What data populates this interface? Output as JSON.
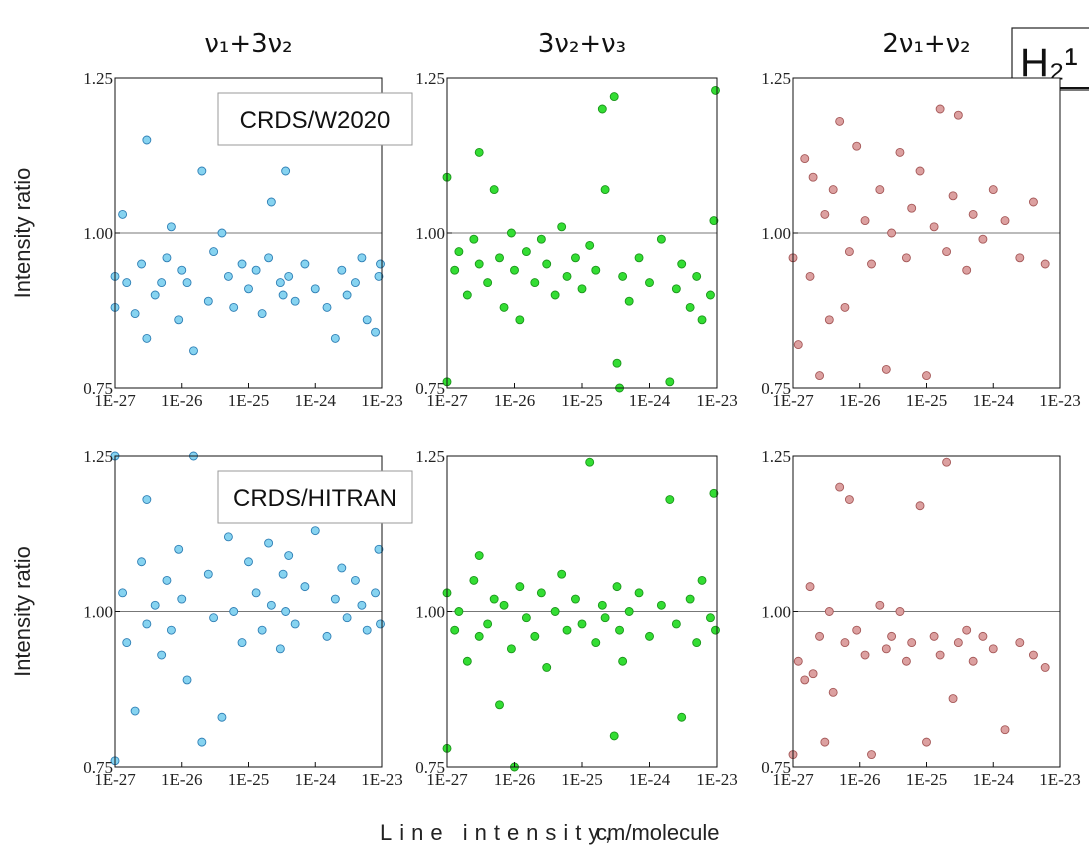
{
  "figure": {
    "label": "H₂¹",
    "xlabel": "Line intensity,",
    "xlabel_units": "cm/molecule"
  },
  "chart_data": [
    {
      "type": "scatter",
      "title": "ν₁+3ν₂",
      "ylabel": "Intensity ratio",
      "annotation": "CRDS/W2020",
      "xscale": "log",
      "xlim": [
        1e-27,
        1e-23
      ],
      "xticks": [
        {
          "value": 1e-27,
          "label": "1E-27"
        },
        {
          "value": 1e-26,
          "label": "1E-26"
        },
        {
          "value": 1e-25,
          "label": "1E-25"
        },
        {
          "value": 1e-24,
          "label": "1E-24"
        },
        {
          "value": 1e-23,
          "label": "1E-23"
        }
      ],
      "ylim": [
        0.75,
        1.25
      ],
      "yticks": [
        0.75,
        {
          "value": 1,
          "label": "1.00"
        },
        1.25
      ],
      "hline": 1,
      "series": [
        {
          "color": "#86d3f0",
          "edge": "#2f7fb5",
          "x": [
            1e-27,
            1e-27,
            1.3e-27,
            1.5e-27,
            2e-27,
            2.5e-27,
            3e-27,
            3e-27,
            4e-27,
            5e-27,
            6e-27,
            7e-27,
            9e-27,
            1e-26,
            1.2e-26,
            1.5e-26,
            2e-26,
            2.5e-26,
            3e-26,
            4e-26,
            5e-26,
            6e-26,
            8e-26,
            1e-25,
            1.3e-25,
            1.6e-25,
            2e-25,
            2.2e-25,
            3e-25,
            3.3e-25,
            3.6e-25,
            4e-25,
            5e-25,
            7e-25,
            1e-24,
            1.5e-24,
            2e-24,
            2.5e-24,
            3e-24,
            4e-24,
            5e-24,
            6e-24,
            8e-24,
            9e-24,
            9.5e-24
          ],
          "values": [
            0.93,
            0.88,
            1.03,
            0.92,
            0.87,
            0.95,
            1.15,
            0.83,
            0.9,
            0.92,
            0.96,
            1.01,
            0.86,
            0.94,
            0.92,
            0.81,
            1.1,
            0.89,
            0.97,
            1.0,
            0.93,
            0.88,
            0.95,
            0.91,
            0.94,
            0.87,
            0.96,
            1.05,
            0.92,
            0.9,
            1.1,
            0.93,
            0.89,
            0.95,
            0.91,
            0.88,
            0.83,
            0.94,
            0.9,
            0.92,
            0.96,
            0.86,
            0.84,
            0.93,
            0.95
          ]
        }
      ]
    },
    {
      "type": "scatter",
      "title": "3ν₂+ν₃",
      "xscale": "log",
      "xlim": [
        1e-27,
        1e-23
      ],
      "xticks": [
        {
          "value": 1e-27,
          "label": "1E-27"
        },
        {
          "value": 1e-26,
          "label": "1E-26"
        },
        {
          "value": 1e-25,
          "label": "1E-25"
        },
        {
          "value": 1e-24,
          "label": "1E-24"
        },
        {
          "value": 1e-23,
          "label": "1E-23"
        }
      ],
      "ylim": [
        0.75,
        1.25
      ],
      "yticks": [
        0.75,
        {
          "value": 1,
          "label": "1.00"
        },
        1.25
      ],
      "hline": 1,
      "series": [
        {
          "color": "#33dd33",
          "edge": "#1b951b",
          "x": [
            1e-27,
            1e-27,
            1.3e-27,
            1.5e-27,
            2e-27,
            2.5e-27,
            3e-27,
            3e-27,
            4e-27,
            5e-27,
            6e-27,
            7e-27,
            9e-27,
            1e-26,
            1.2e-26,
            1.5e-26,
            2e-26,
            2.5e-26,
            3e-26,
            4e-26,
            5e-26,
            6e-26,
            8e-26,
            1e-25,
            1.3e-25,
            1.6e-25,
            2e-25,
            2.2e-25,
            3e-25,
            3.3e-25,
            3.6e-25,
            4e-25,
            5e-25,
            7e-25,
            1e-24,
            1.5e-24,
            2e-24,
            2.5e-24,
            3e-24,
            4e-24,
            5e-24,
            6e-24,
            8e-24,
            9e-24,
            9.5e-24
          ],
          "values": [
            1.09,
            0.76,
            0.94,
            0.97,
            0.9,
            0.99,
            1.13,
            0.95,
            0.92,
            1.07,
            0.96,
            0.88,
            1.0,
            0.94,
            0.86,
            0.97,
            0.92,
            0.99,
            0.95,
            0.9,
            1.01,
            0.93,
            0.96,
            0.91,
            0.98,
            0.94,
            1.2,
            1.07,
            1.22,
            0.79,
            0.75,
            0.93,
            0.89,
            0.96,
            0.92,
            0.99,
            0.76,
            0.91,
            0.95,
            0.88,
            0.93,
            0.86,
            0.9,
            1.02,
            1.23
          ]
        }
      ]
    },
    {
      "type": "scatter",
      "title": "2ν₁+ν₂",
      "xscale": "log",
      "xlim": [
        1e-27,
        1e-23
      ],
      "xticks": [
        {
          "value": 1e-27,
          "label": "1E-27"
        },
        {
          "value": 1e-26,
          "label": "1E-26"
        },
        {
          "value": 1e-25,
          "label": "1E-25"
        },
        {
          "value": 1e-24,
          "label": "1E-24"
        },
        {
          "value": 1e-23,
          "label": "1E-23"
        }
      ],
      "ylim": [
        0.75,
        1.25
      ],
      "yticks": [
        0.75,
        {
          "value": 1,
          "label": "1.00"
        },
        1.25
      ],
      "hline": 1,
      "series": [
        {
          "color": "#dca0a0",
          "edge": "#a55858",
          "x": [
            1e-27,
            1.2e-27,
            1.5e-27,
            1.8e-27,
            2e-27,
            2.5e-27,
            3e-27,
            3.5e-27,
            4e-27,
            5e-27,
            6e-27,
            7e-27,
            9e-27,
            1.2e-26,
            1.5e-26,
            2e-26,
            2.5e-26,
            3e-26,
            4e-26,
            5e-26,
            6e-26,
            8e-26,
            1e-25,
            1.3e-25,
            1.6e-25,
            2e-25,
            2.5e-25,
            3e-25,
            4e-25,
            5e-25,
            7e-25,
            1e-24,
            1.5e-24,
            2.5e-24,
            4e-24,
            6e-24
          ],
          "values": [
            0.96,
            0.82,
            1.12,
            0.93,
            1.09,
            0.77,
            1.03,
            0.86,
            1.07,
            1.18,
            0.88,
            0.97,
            1.14,
            1.02,
            0.95,
            1.07,
            0.78,
            1.0,
            1.13,
            0.96,
            1.04,
            1.1,
            0.77,
            1.01,
            1.2,
            0.97,
            1.06,
            1.19,
            0.94,
            1.03,
            0.99,
            1.07,
            1.02,
            0.96,
            1.05,
            0.95
          ]
        }
      ]
    },
    {
      "type": "scatter",
      "ylabel": "Intensity ratio",
      "annotation": "CRDS/HITRAN",
      "xscale": "log",
      "xlim": [
        1e-27,
        1e-23
      ],
      "xticks": [
        {
          "value": 1e-27,
          "label": "1E-27"
        },
        {
          "value": 1e-26,
          "label": "1E-26"
        },
        {
          "value": 1e-25,
          "label": "1E-25"
        },
        {
          "value": 1e-24,
          "label": "1E-24"
        },
        {
          "value": 1e-23,
          "label": "1E-23"
        }
      ],
      "ylim": [
        0.75,
        1.25
      ],
      "yticks": [
        0.75,
        {
          "value": 1,
          "label": "1.00"
        },
        1.25
      ],
      "hline": 1,
      "series": [
        {
          "color": "#86d3f0",
          "edge": "#2f7fb5",
          "x": [
            1e-27,
            1e-27,
            1.3e-27,
            1.5e-27,
            2e-27,
            2.5e-27,
            3e-27,
            3e-27,
            4e-27,
            5e-27,
            6e-27,
            7e-27,
            9e-27,
            1e-26,
            1.2e-26,
            1.5e-26,
            2e-26,
            2.5e-26,
            3e-26,
            4e-26,
            5e-26,
            6e-26,
            8e-26,
            1e-25,
            1.3e-25,
            1.6e-25,
            2e-25,
            2.2e-25,
            3e-25,
            3.3e-25,
            3.6e-25,
            4e-25,
            5e-25,
            7e-25,
            1e-24,
            1.5e-24,
            2e-24,
            2.5e-24,
            3e-24,
            4e-24,
            5e-24,
            6e-24,
            8e-24,
            9e-24,
            9.5e-24
          ],
          "values": [
            1.25,
            0.76,
            1.03,
            0.95,
            0.84,
            1.08,
            0.98,
            1.18,
            1.01,
            0.93,
            1.05,
            0.97,
            1.1,
            1.02,
            0.89,
            1.25,
            0.79,
            1.06,
            0.99,
            0.83,
            1.12,
            1.0,
            0.95,
            1.08,
            1.03,
            0.97,
            1.11,
            1.01,
            0.94,
            1.06,
            1.0,
            1.09,
            0.98,
            1.04,
            1.13,
            0.96,
            1.02,
            1.07,
            0.99,
            1.05,
            1.01,
            0.97,
            1.03,
            1.1,
            0.98
          ]
        }
      ]
    },
    {
      "type": "scatter",
      "xscale": "log",
      "xlim": [
        1e-27,
        1e-23
      ],
      "xticks": [
        {
          "value": 1e-27,
          "label": "1E-27"
        },
        {
          "value": 1e-26,
          "label": "1E-26"
        },
        {
          "value": 1e-25,
          "label": "1E-25"
        },
        {
          "value": 1e-24,
          "label": "1E-24"
        },
        {
          "value": 1e-23,
          "label": "1E-23"
        }
      ],
      "ylim": [
        0.75,
        1.25
      ],
      "yticks": [
        0.75,
        {
          "value": 1,
          "label": "1.00"
        },
        1.25
      ],
      "hline": 1,
      "series": [
        {
          "color": "#33dd33",
          "edge": "#1b951b",
          "x": [
            1e-27,
            1e-27,
            1.3e-27,
            1.5e-27,
            2e-27,
            2.5e-27,
            3e-27,
            3e-27,
            4e-27,
            5e-27,
            6e-27,
            7e-27,
            9e-27,
            1e-26,
            1.2e-26,
            1.5e-26,
            2e-26,
            2.5e-26,
            3e-26,
            4e-26,
            5e-26,
            6e-26,
            8e-26,
            1e-25,
            1.3e-25,
            1.6e-25,
            2e-25,
            2.2e-25,
            3e-25,
            3.3e-25,
            3.6e-25,
            4e-25,
            5e-25,
            7e-25,
            1e-24,
            1.5e-24,
            2e-24,
            2.5e-24,
            3e-24,
            4e-24,
            5e-24,
            6e-24,
            8e-24,
            9e-24,
            9.5e-24
          ],
          "values": [
            0.78,
            1.03,
            0.97,
            1.0,
            0.92,
            1.05,
            0.96,
            1.09,
            0.98,
            1.02,
            0.85,
            1.01,
            0.94,
            0.75,
            1.04,
            0.99,
            0.96,
            1.03,
            0.91,
            1.0,
            1.06,
            0.97,
            1.02,
            0.98,
            1.24,
            0.95,
            1.01,
            0.99,
            0.8,
            1.04,
            0.97,
            0.92,
            1.0,
            1.03,
            0.96,
            1.01,
            1.18,
            0.98,
            0.83,
            1.02,
            0.95,
            1.05,
            0.99,
            1.19,
            0.97
          ]
        }
      ]
    },
    {
      "type": "scatter",
      "xscale": "log",
      "xlim": [
        1e-27,
        1e-23
      ],
      "xticks": [
        {
          "value": 1e-27,
          "label": "1E-27"
        },
        {
          "value": 1e-26,
          "label": "1E-26"
        },
        {
          "value": 1e-25,
          "label": "1E-25"
        },
        {
          "value": 1e-24,
          "label": "1E-24"
        },
        {
          "value": 1e-23,
          "label": "1E-23"
        }
      ],
      "ylim": [
        0.75,
        1.25
      ],
      "yticks": [
        0.75,
        {
          "value": 1,
          "label": "1.00"
        },
        1.25
      ],
      "hline": 1,
      "series": [
        {
          "color": "#dca0a0",
          "edge": "#a55858",
          "x": [
            1e-27,
            1.2e-27,
            1.5e-27,
            1.8e-27,
            2e-27,
            2.5e-27,
            3e-27,
            3.5e-27,
            4e-27,
            5e-27,
            6e-27,
            7e-27,
            9e-27,
            1.2e-26,
            1.5e-26,
            2e-26,
            2.5e-26,
            3e-26,
            4e-26,
            5e-26,
            6e-26,
            8e-26,
            1e-25,
            1.3e-25,
            1.6e-25,
            2e-25,
            2.5e-25,
            3e-25,
            4e-25,
            5e-25,
            7e-25,
            1e-24,
            1.5e-24,
            2.5e-24,
            4e-24,
            6e-24
          ],
          "values": [
            0.77,
            0.92,
            0.89,
            1.04,
            0.9,
            0.96,
            0.79,
            1.0,
            0.87,
            1.2,
            0.95,
            1.18,
            0.97,
            0.93,
            0.77,
            1.01,
            0.94,
            0.96,
            1.0,
            0.92,
            0.95,
            1.17,
            0.79,
            0.96,
            0.93,
            1.24,
            0.86,
            0.95,
            0.97,
            0.92,
            0.96,
            0.94,
            0.81,
            0.95,
            0.93,
            0.91
          ]
        }
      ]
    }
  ]
}
